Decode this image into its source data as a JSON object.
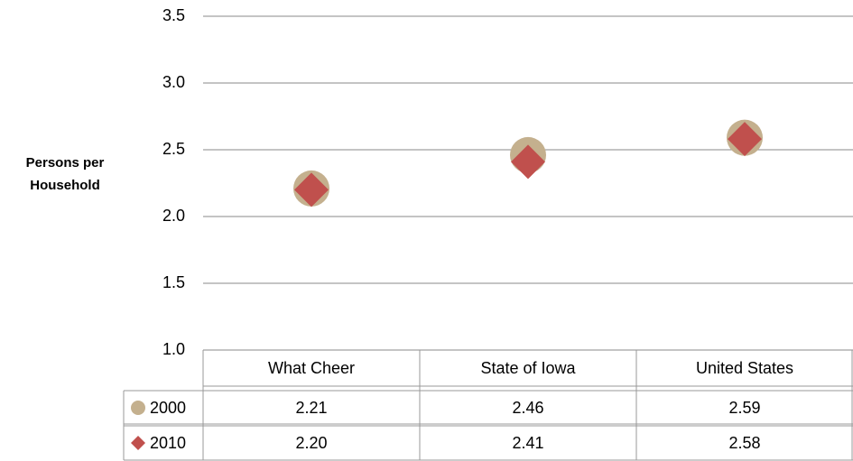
{
  "chart_data": {
    "type": "scatter",
    "y_label": "Persons per Household",
    "categories": [
      "What Cheer",
      "State of Iowa",
      "United States"
    ],
    "series": [
      {
        "name": "2000",
        "color": "#c4b08e",
        "marker": "circle",
        "values": [
          2.21,
          2.46,
          2.59
        ],
        "value_labels": [
          "2.21",
          "2.46",
          "2.59"
        ]
      },
      {
        "name": "2010",
        "color": "#c0504d",
        "marker": "diamond",
        "values": [
          2.2,
          2.41,
          2.58
        ],
        "value_labels": [
          "2.20",
          "2.41",
          "2.58"
        ]
      }
    ],
    "ylim": [
      1,
      3.5
    ],
    "yticks": [
      {
        "value": 1,
        "label": "1.0"
      },
      1.5,
      {
        "value": 2,
        "label": "2.0"
      },
      2.5,
      {
        "value": 3,
        "label": "3.0"
      },
      3.5
    ],
    "grid": true
  }
}
